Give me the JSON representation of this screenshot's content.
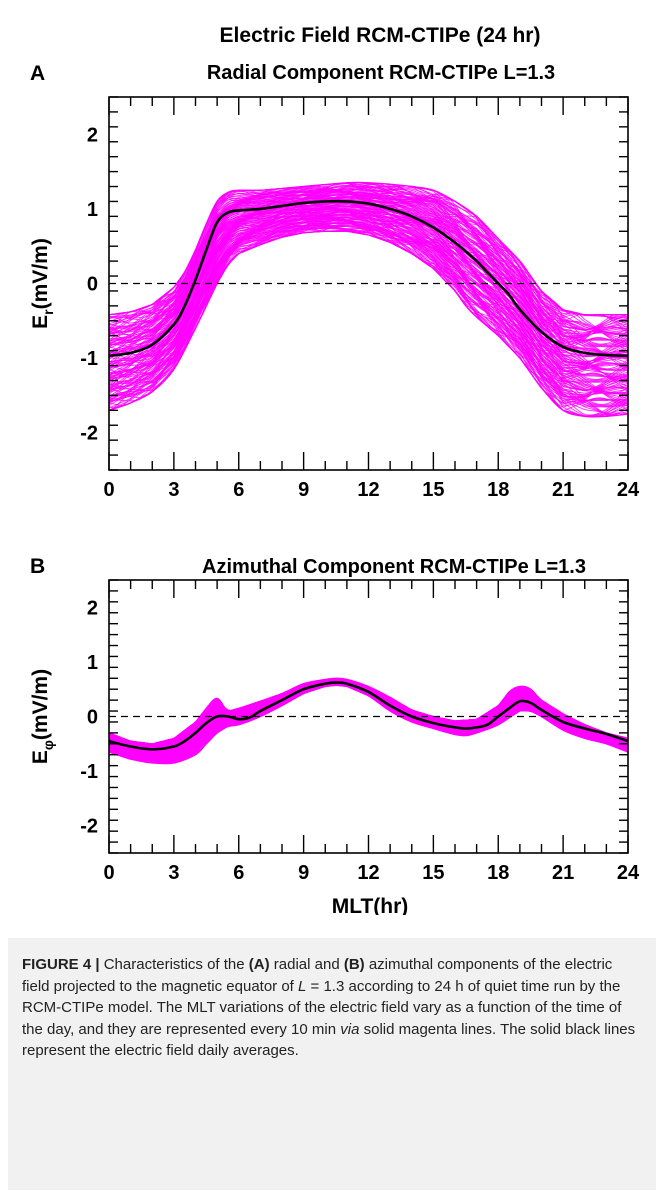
{
  "figure": {
    "title": "Electric Field RCM-CTIPe (24 hr)",
    "colors": {
      "runs": "#ff00ff",
      "average": "#000000",
      "zero_line": "#000000"
    }
  },
  "chart_data": [
    {
      "type": "line",
      "panel_label": "A",
      "title": "Radial Component RCM-CTIPe L=1.3",
      "xlabel": "",
      "ylabel_main": "E",
      "ylabel_sub": "r",
      "ylabel_unit": "(mV/m)",
      "xlim": [
        0,
        24
      ],
      "ylim": [
        -2.5,
        2.5
      ],
      "xticks": [
        0,
        3,
        6,
        9,
        12,
        15,
        18,
        21,
        24
      ],
      "xtick_labels": [
        "0",
        "3",
        "6",
        "9",
        "12",
        "15",
        "18",
        "21",
        "24"
      ],
      "yticks": [
        -2,
        -1,
        0,
        1,
        2
      ],
      "ytick_labels": [
        "-2",
        "-1",
        "0",
        "1",
        "2"
      ],
      "reference_line_y": 0,
      "series": [
        {
          "role": "daily-average",
          "x": [
            0,
            1,
            2,
            3,
            3.5,
            4,
            4.5,
            5,
            5.5,
            6,
            7,
            8,
            9,
            10,
            11,
            12,
            13,
            14,
            15,
            16,
            17,
            17.5,
            18,
            18.5,
            19,
            20,
            21,
            22,
            23,
            24
          ],
          "y": [
            -0.97,
            -0.93,
            -0.82,
            -0.55,
            -0.3,
            0.05,
            0.45,
            0.82,
            0.95,
            0.98,
            1.0,
            1.04,
            1.08,
            1.1,
            1.1,
            1.07,
            1.0,
            0.9,
            0.75,
            0.55,
            0.3,
            0.15,
            0.0,
            -0.15,
            -0.35,
            -0.65,
            -0.85,
            -0.93,
            -0.96,
            -0.97
          ]
        },
        {
          "role": "upper-envelope",
          "x": [
            0,
            1,
            2,
            3,
            3.5,
            4,
            4.5,
            5,
            5.5,
            6,
            7,
            9,
            11,
            12,
            13,
            14,
            15,
            16,
            17,
            18,
            19,
            19.5,
            20,
            21,
            22,
            23,
            24
          ],
          "y": [
            -0.42,
            -0.38,
            -0.28,
            -0.05,
            0.15,
            0.45,
            0.8,
            1.1,
            1.22,
            1.25,
            1.25,
            1.3,
            1.35,
            1.35,
            1.33,
            1.3,
            1.25,
            1.1,
            0.9,
            0.6,
            0.3,
            0.1,
            -0.1,
            -0.35,
            -0.42,
            -0.42,
            -0.42
          ]
        },
        {
          "role": "lower-envelope",
          "x": [
            0,
            1,
            2,
            3,
            4,
            4.5,
            5,
            5.5,
            6,
            7,
            8,
            9,
            10,
            11,
            12,
            13,
            14,
            15,
            15.5,
            16,
            16.5,
            17,
            18,
            19,
            20,
            21,
            22,
            23,
            24
          ],
          "y": [
            -1.7,
            -1.6,
            -1.45,
            -1.15,
            -0.6,
            -0.3,
            0.0,
            0.25,
            0.4,
            0.52,
            0.62,
            0.68,
            0.7,
            0.7,
            0.65,
            0.55,
            0.4,
            0.2,
            0.05,
            -0.1,
            -0.3,
            -0.45,
            -0.7,
            -1.0,
            -1.4,
            -1.7,
            -1.78,
            -1.78,
            -1.75
          ]
        }
      ]
    },
    {
      "type": "line",
      "panel_label": "B",
      "title": "Azimuthal Component RCM-CTIPe L=1.3",
      "xlabel": "MLT(hr)",
      "ylabel_main": "E",
      "ylabel_sub": "φ",
      "ylabel_unit": "(mV/m)",
      "xlim": [
        0,
        24
      ],
      "ylim": [
        -2.5,
        2.5
      ],
      "xticks": [
        0,
        3,
        6,
        9,
        12,
        15,
        18,
        21,
        24
      ],
      "xtick_labels": [
        "0",
        "3",
        "6",
        "9",
        "12",
        "15",
        "18",
        "21",
        "24"
      ],
      "yticks": [
        -2,
        -1,
        0,
        1,
        2
      ],
      "ytick_labels": [
        "-2",
        "-1",
        "0",
        "1",
        "2"
      ],
      "reference_line_y": 0,
      "series": [
        {
          "role": "daily-average",
          "x": [
            0,
            1,
            2,
            3,
            3.5,
            4,
            4.5,
            5,
            5.5,
            6,
            6.5,
            7,
            8,
            9,
            10,
            10.5,
            11,
            12,
            13,
            14,
            15,
            16,
            16.5,
            17,
            17.5,
            18,
            18.5,
            19,
            19.5,
            20,
            21,
            22,
            23,
            24
          ],
          "y": [
            -0.45,
            -0.55,
            -0.6,
            -0.55,
            -0.45,
            -0.3,
            -0.12,
            0.0,
            0.0,
            -0.05,
            -0.02,
            0.1,
            0.3,
            0.5,
            0.6,
            0.62,
            0.6,
            0.45,
            0.2,
            0.0,
            -0.12,
            -0.2,
            -0.22,
            -0.2,
            -0.15,
            0.0,
            0.15,
            0.28,
            0.25,
            0.12,
            -0.1,
            -0.22,
            -0.32,
            -0.45
          ]
        },
        {
          "role": "upper-envelope",
          "x": [
            0,
            1,
            2,
            3,
            4,
            4.5,
            5,
            5.5,
            6,
            7,
            8,
            9,
            10,
            10.5,
            11,
            12,
            13,
            14,
            15,
            16,
            17,
            18,
            18.5,
            19,
            19.5,
            20,
            21,
            22,
            23,
            24
          ],
          "y": [
            -0.3,
            -0.45,
            -0.5,
            -0.4,
            -0.1,
            0.15,
            0.33,
            0.1,
            0.15,
            0.28,
            0.42,
            0.6,
            0.68,
            0.7,
            0.68,
            0.55,
            0.35,
            0.12,
            0.0,
            -0.08,
            -0.05,
            0.2,
            0.45,
            0.55,
            0.5,
            0.3,
            0.05,
            -0.15,
            -0.3,
            -0.4
          ]
        },
        {
          "role": "lower-envelope",
          "x": [
            0,
            1,
            2,
            3,
            4,
            4.5,
            5,
            5.5,
            6,
            7,
            8,
            9,
            10,
            10.5,
            11,
            12,
            13,
            14,
            15,
            16,
            16.5,
            17,
            18,
            19,
            19.5,
            20,
            21,
            22,
            23,
            24
          ],
          "y": [
            -0.65,
            -0.78,
            -0.85,
            -0.85,
            -0.7,
            -0.5,
            -0.3,
            -0.18,
            -0.15,
            0.0,
            0.2,
            0.42,
            0.55,
            0.57,
            0.55,
            0.38,
            0.1,
            -0.1,
            -0.22,
            -0.33,
            -0.35,
            -0.3,
            -0.15,
            0.1,
            0.1,
            0.0,
            -0.25,
            -0.4,
            -0.5,
            -0.65
          ]
        }
      ]
    }
  ],
  "caption": {
    "label": "FIGURE 4 |",
    "t1": " Characteristics of the ",
    "a": "(A)",
    "t2": " radial and ",
    "b": "(B)",
    "t3": " azimuthal components of the electric field projected to the magnetic equator of ",
    "var": "L",
    "t4": " = 1.3 according to 24 h of quiet time run by the RCM-CTIPe model. The MLT variations of the electric field vary as a function of the time of the day, and they are represented every 10 min ",
    "via": "via",
    "t5": " solid magenta lines. The solid black lines represent the electric field daily averages."
  }
}
